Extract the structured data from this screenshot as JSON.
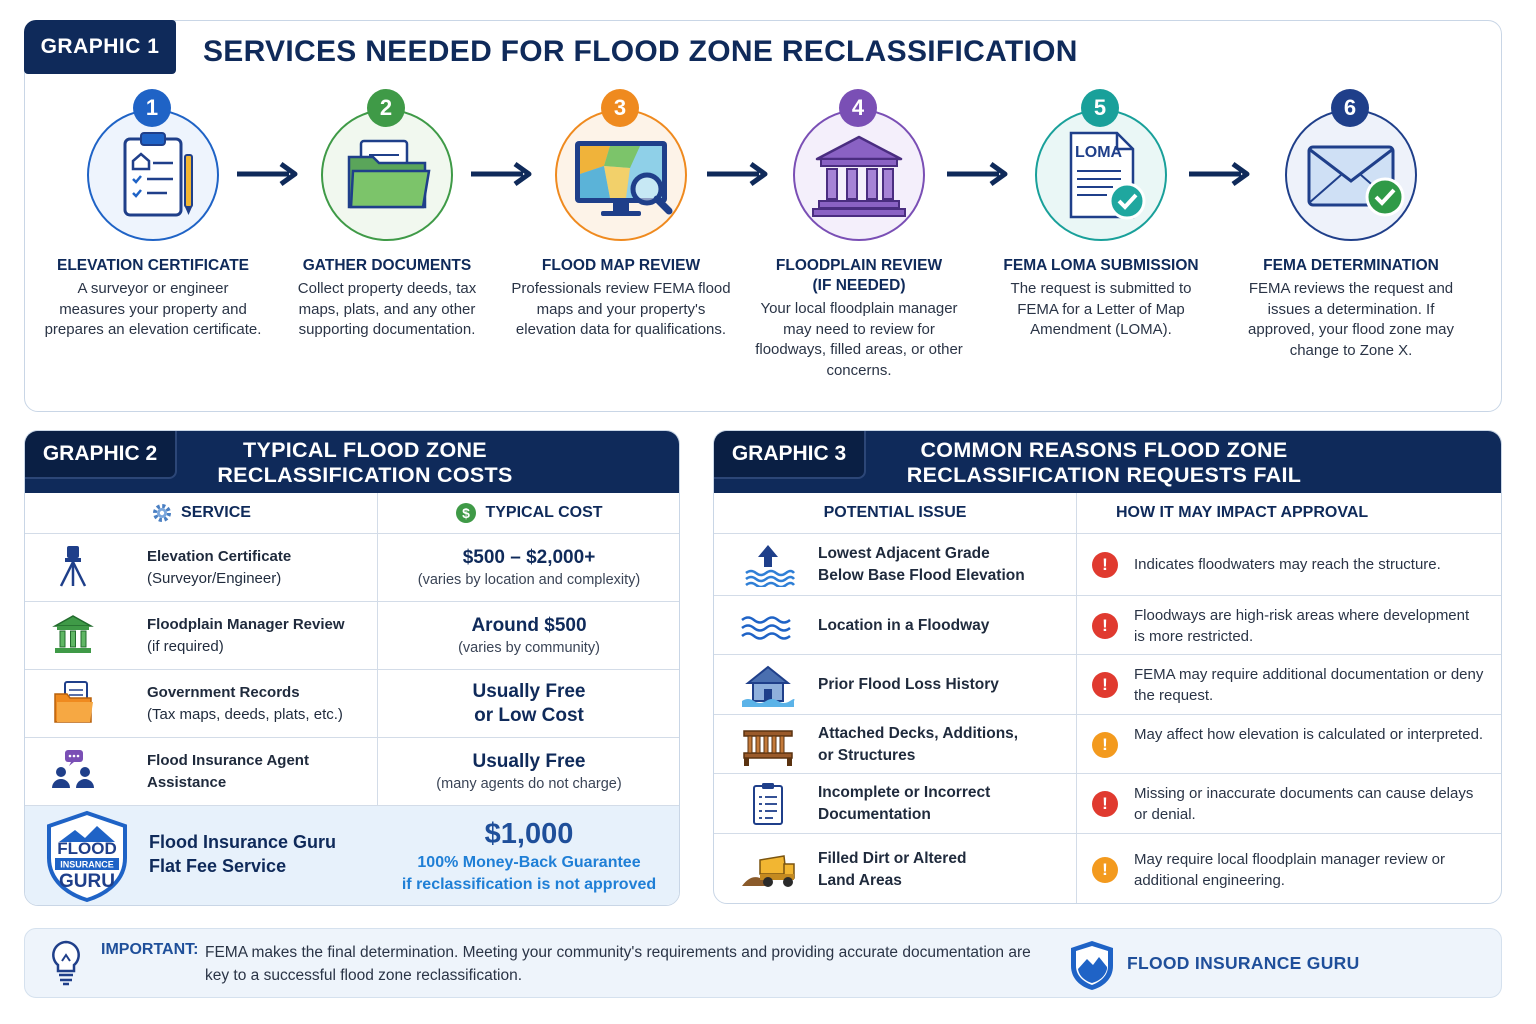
{
  "graphic1": {
    "tag": "GRAPHIC 1",
    "title": "SERVICES NEEDED FOR FLOOD ZONE RECLASSIFICATION",
    "steps": [
      {
        "num": "1",
        "title": "ELEVATION CERTIFICATE",
        "desc": "A surveyor or engineer measures your property and prepares an elevation certificate.",
        "icon": "clipboard-icon",
        "color": "#1f63c6"
      },
      {
        "num": "2",
        "title": "GATHER DOCUMENTS",
        "desc": "Collect property deeds, tax maps, plats, and any other supporting documentation.",
        "icon": "folder-icon",
        "color": "#3f9a47"
      },
      {
        "num": "3",
        "title": "FLOOD MAP REVIEW",
        "desc": "Professionals review FEMA flood maps and your property's elevation data for qualifications.",
        "icon": "monitor-map-icon",
        "color": "#ef8a1f"
      },
      {
        "num": "4",
        "title_line1": "FLOODPLAIN REVIEW",
        "title_line2": "(IF NEEDED)",
        "desc": "Your local floodplain manager may need to review for floodways, filled areas, or other concerns.",
        "icon": "building-icon",
        "color": "#7a4fb5"
      },
      {
        "num": "5",
        "title": "FEMA LOMA SUBMISSION",
        "desc": "The request is submitted to FEMA for a Letter of Map Amendment (LOMA).",
        "icon": "loma-document-icon",
        "icon_label": "LOMA",
        "color": "#19a09a"
      },
      {
        "num": "6",
        "title": "FEMA DETERMINATION",
        "desc": "FEMA reviews the request and issues a determination. If approved, your flood zone may change to Zone X.",
        "icon": "envelope-check-icon",
        "color": "#1f3f8a"
      }
    ]
  },
  "graphic2": {
    "tag": "GRAPHIC 2",
    "title_line1": "TYPICAL FLOOD ZONE",
    "title_line2": "RECLASSIFICATION COSTS",
    "col_service": "SERVICE",
    "col_cost": "TYPICAL COST",
    "rows": [
      {
        "name": "Elevation Certificate",
        "sub": "(Surveyor/Engineer)",
        "cost": "$500 – $2,000+",
        "note": "(varies by location and complexity)",
        "icon": "surveyor-tripod-icon"
      },
      {
        "name": "Floodplain Manager Review",
        "sub": "(if required)",
        "cost": "Around $500",
        "note": "(varies by community)",
        "icon": "government-building-icon"
      },
      {
        "name": "Government Records",
        "sub": "(Tax maps, deeds, plats, etc.)",
        "cost_line1": "Usually Free",
        "cost_line2": "or Low Cost",
        "icon": "records-folder-icon"
      },
      {
        "name_line1": "Flood Insurance Agent",
        "name_line2": "Assistance",
        "cost": "Usually Free",
        "note": "(many agents do not charge)",
        "icon": "agent-people-icon"
      }
    ],
    "featured": {
      "logo_line1": "FLOOD",
      "logo_line2": "INSURANCE",
      "logo_line3": "GURU",
      "name_line1": "Flood Insurance Guru",
      "name_line2": "Flat Fee Service",
      "price": "$1,000",
      "guarantee_line1": "100% Money-Back Guarantee",
      "guarantee_line2": "if reclassification is not approved"
    }
  },
  "graphic3": {
    "tag": "GRAPHIC 3",
    "title_line1": "COMMON REASONS FLOOD ZONE",
    "title_line2": "RECLASSIFICATION REQUESTS FAIL",
    "col_issue": "POTENTIAL ISSUE",
    "col_impact": "HOW IT MAY IMPACT APPROVAL",
    "rows": [
      {
        "issue_line1": "Lowest Adjacent Grade",
        "issue_line2": "Below Base Flood Elevation",
        "impact": "Indicates floodwaters may reach the structure.",
        "severity": "high",
        "icon": "water-rise-icon"
      },
      {
        "issue_line1": "Location in a Floodway",
        "issue_line2": "",
        "impact": "Floodways are high-risk areas where development is more restricted.",
        "severity": "high",
        "icon": "waves-icon"
      },
      {
        "issue_line1": "Prior Flood Loss History",
        "issue_line2": "",
        "impact": "FEMA may require additional documentation or deny the request.",
        "severity": "high",
        "icon": "flooded-house-icon"
      },
      {
        "issue_line1": "Attached Decks, Additions,",
        "issue_line2": "or Structures",
        "impact": "May affect how elevation is calculated or interpreted.",
        "severity": "medium",
        "icon": "deck-icon"
      },
      {
        "issue_line1": "Incomplete or Incorrect",
        "issue_line2": "Documentation",
        "impact": "Missing or inaccurate documents can cause delays or denial.",
        "severity": "high",
        "icon": "checklist-icon"
      },
      {
        "issue_line1": "Filled Dirt or Altered",
        "issue_line2": "Land Areas",
        "impact": "May require local floodplain manager review or additional engineering.",
        "severity": "medium",
        "icon": "dump-truck-icon"
      }
    ],
    "severity_colors": {
      "high": "#e03a2f",
      "medium": "#f39a1e"
    }
  },
  "footer": {
    "label": "IMPORTANT:",
    "text": "FEMA makes the final determination. Meeting your community's requirements and providing accurate documentation are key to a successful flood zone reclassification.",
    "brand": "FLOOD INSURANCE GURU",
    "icon": "lightbulb-icon"
  }
}
